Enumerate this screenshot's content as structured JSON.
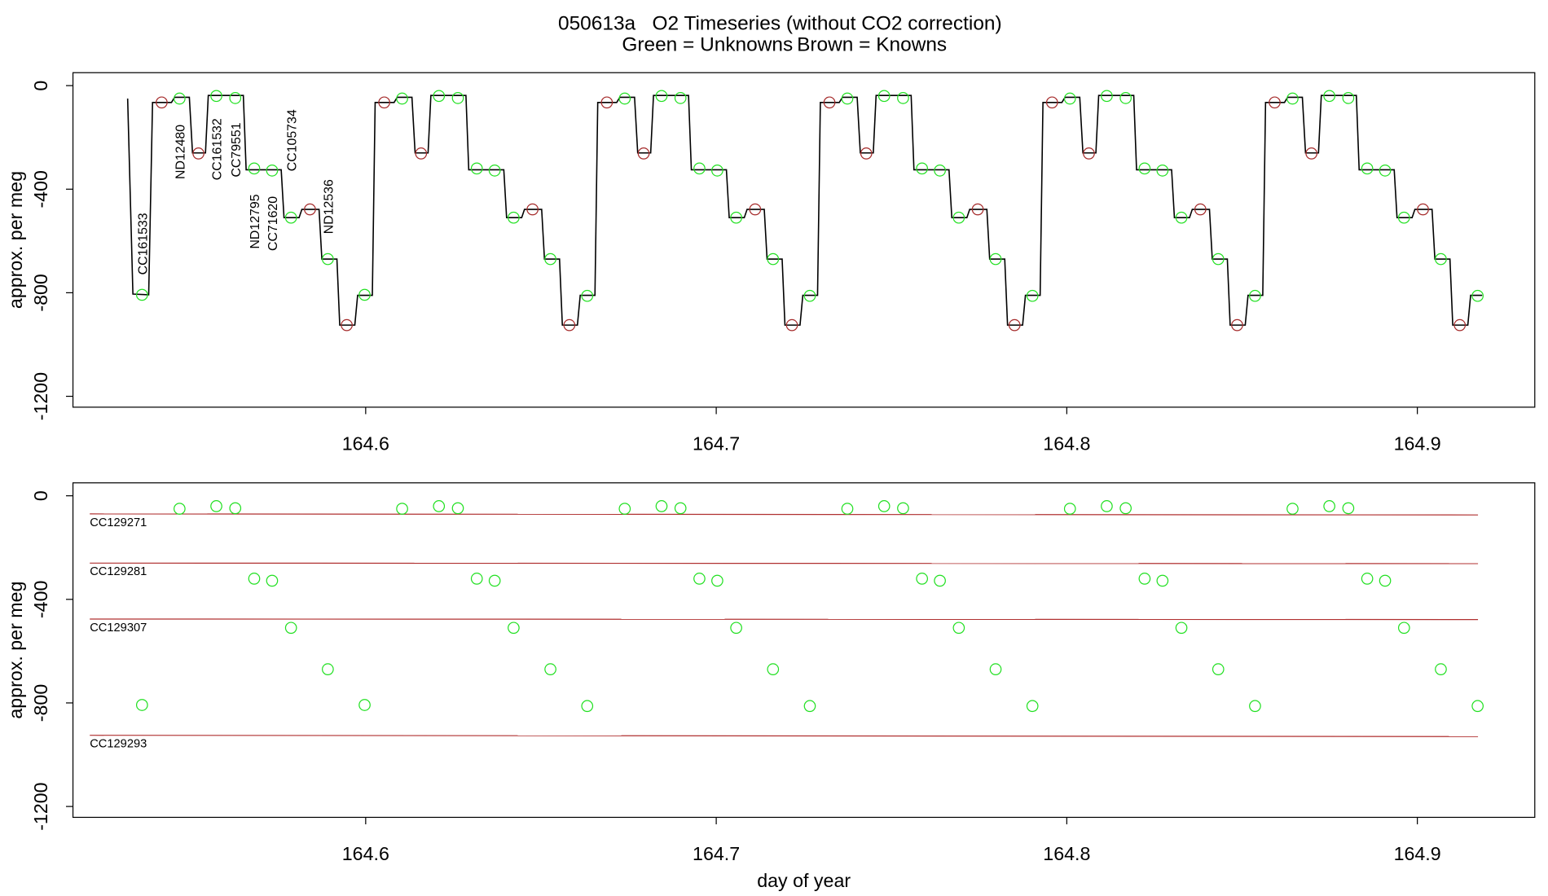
{
  "title": "050613a   O2 Timeseries (without CO2 correction)",
  "legend": [
    {
      "text": "Green = Unknowns",
      "color": "#22e022"
    },
    {
      "text": "Brown = Knowns",
      "color": "#a52a2a"
    }
  ],
  "chart_data": [
    {
      "type": "line",
      "y_label": "approx. per meg",
      "xlim": [
        164.5165,
        164.9335
      ],
      "ylim": [
        -1242,
        50
      ],
      "xticks": [
        164.6,
        164.7,
        164.8,
        164.9
      ],
      "yticks": [
        0,
        -400,
        -800,
        -1200
      ],
      "line": {
        "color": "#000000",
        "x": [
          164.5321,
          164.5336,
          164.5381,
          164.5392,
          164.5446,
          164.5455,
          164.5497,
          164.5506,
          164.5543,
          164.5551,
          164.5651,
          164.5659,
          164.5759,
          164.5767,
          164.581,
          164.5818,
          164.5867,
          164.5875,
          164.5918,
          164.5926,
          164.5969,
          164.5977,
          164.6019,
          164.6027,
          164.6081,
          164.609,
          164.6132,
          164.6141,
          164.6178,
          164.6186,
          164.6286,
          164.6294,
          164.6394,
          164.6402,
          164.6445,
          164.6453,
          164.6502,
          164.651,
          164.6553,
          164.6561,
          164.6604,
          164.6612,
          164.6654,
          164.6662,
          164.6716,
          164.6725,
          164.6767,
          164.6776,
          164.6813,
          164.6821,
          164.6921,
          164.6929,
          164.7029,
          164.7037,
          164.708,
          164.7088,
          164.7137,
          164.7145,
          164.7188,
          164.7196,
          164.7239,
          164.7247,
          164.7289,
          164.7297,
          164.7351,
          164.736,
          164.7402,
          164.7411,
          164.7448,
          164.7456,
          164.7556,
          164.7564,
          164.7664,
          164.7672,
          164.7715,
          164.7723,
          164.7772,
          164.778,
          164.7823,
          164.7831,
          164.7874,
          164.7882,
          164.7924,
          164.7932,
          164.7986,
          164.7995,
          164.8037,
          164.8046,
          164.8083,
          164.8091,
          164.8191,
          164.8199,
          164.8299,
          164.8307,
          164.835,
          164.8358,
          164.8407,
          164.8415,
          164.8458,
          164.8466,
          164.8509,
          164.8517,
          164.8559,
          164.8567,
          164.8621,
          164.863,
          164.8672,
          164.8681,
          164.8718,
          164.8726,
          164.8826,
          164.8834,
          164.8934,
          164.8942,
          164.8985,
          164.8993,
          164.9042,
          164.905,
          164.9093,
          164.9101,
          164.9144,
          164.9152,
          164.9185
        ],
        "values": [
          -50,
          -805,
          -808,
          -65,
          -65,
          -45,
          -45,
          -260,
          -260,
          -38,
          -38,
          -325,
          -325,
          -510,
          -510,
          -478,
          -478,
          -670,
          -670,
          -925,
          -925,
          -810,
          -810,
          -65,
          -65,
          -45,
          -45,
          -260,
          -260,
          -38,
          -38,
          -325,
          -325,
          -510,
          -510,
          -478,
          -478,
          -670,
          -670,
          -925,
          -925,
          -810,
          -810,
          -65,
          -65,
          -45,
          -45,
          -260,
          -260,
          -38,
          -38,
          -325,
          -325,
          -510,
          -510,
          -478,
          -478,
          -670,
          -670,
          -925,
          -925,
          -810,
          -810,
          -65,
          -65,
          -45,
          -45,
          -260,
          -260,
          -38,
          -38,
          -325,
          -325,
          -510,
          -510,
          -478,
          -478,
          -670,
          -670,
          -925,
          -925,
          -810,
          -810,
          -65,
          -65,
          -45,
          -45,
          -260,
          -260,
          -38,
          -38,
          -325,
          -325,
          -510,
          -510,
          -478,
          -478,
          -670,
          -670,
          -925,
          -925,
          -810,
          -810,
          -65,
          -65,
          -45,
          -45,
          -260,
          -260,
          -38,
          -38,
          -325,
          -325,
          -510,
          -510,
          -478,
          -478,
          -670,
          -670,
          -925,
          -925,
          -810,
          -810
        ]
      },
      "knowns": {
        "color": "#a52a2a",
        "x": [
          164.5418,
          164.5523,
          164.5841,
          164.5946,
          164.6053,
          164.6158,
          164.6476,
          164.6581,
          164.6688,
          164.6793,
          164.7111,
          164.7216,
          164.7323,
          164.7428,
          164.7746,
          164.7851,
          164.7958,
          164.8063,
          164.8381,
          164.8486,
          164.8593,
          164.8698,
          164.9016,
          164.9121
        ],
        "values": [
          -65,
          -262,
          -478,
          -925,
          -65,
          -262,
          -478,
          -925,
          -65,
          -262,
          -478,
          -925,
          -65,
          -262,
          -478,
          -925,
          -65,
          -262,
          -478,
          -925,
          -65,
          -262,
          -478,
          -925
        ]
      },
      "unknowns": {
        "color": "#22e022",
        "labels": [
          "CC161533",
          "ND12480",
          "CC161532",
          "CC79551",
          "ND12795",
          "CC71620",
          "CC105734",
          "ND12536"
        ],
        "x": [
          164.5362,
          164.5469,
          164.5574,
          164.5628,
          164.5682,
          164.5733,
          164.5787,
          164.5892,
          164.5997,
          164.6104,
          164.6209,
          164.6263,
          164.6317,
          164.6368,
          164.6422,
          164.6527,
          164.6632,
          164.6739,
          164.6844,
          164.6898,
          164.6952,
          164.7003,
          164.7057,
          164.7162,
          164.7267,
          164.7374,
          164.7479,
          164.7533,
          164.7587,
          164.7638,
          164.7692,
          164.7797,
          164.7902,
          164.8009,
          164.8114,
          164.8168,
          164.8222,
          164.8273,
          164.8327,
          164.8432,
          164.8537,
          164.8644,
          164.8749,
          164.8803,
          164.8857,
          164.8908,
          164.8962,
          164.9067,
          164.9172
        ],
        "values": [
          -808,
          -50,
          -40,
          -48,
          -320,
          -328,
          -510,
          -670,
          -808,
          -50,
          -40,
          -48,
          -320,
          -328,
          -510,
          -670,
          -812,
          -50,
          -40,
          -48,
          -320,
          -328,
          -510,
          -670,
          -812,
          -50,
          -40,
          -48,
          -320,
          -328,
          -510,
          -670,
          -812,
          -50,
          -40,
          -48,
          -320,
          -328,
          -510,
          -670,
          -812,
          -50,
          -40,
          -48,
          -320,
          -328,
          -510,
          -670,
          -812
        ]
      }
    },
    {
      "type": "scatter",
      "y_label": "approx. per meg",
      "x_label": "day of year",
      "xlim": [
        164.5165,
        164.9335
      ],
      "ylim": [
        -1242,
        50
      ],
      "xticks": [
        164.6,
        164.7,
        164.8,
        164.9
      ],
      "yticks": [
        0,
        -400,
        -800,
        -1200
      ],
      "unknowns": {
        "color": "#22e022",
        "x": [
          164.5362,
          164.5469,
          164.5574,
          164.5628,
          164.5682,
          164.5733,
          164.5787,
          164.5892,
          164.5997,
          164.6104,
          164.6209,
          164.6263,
          164.6317,
          164.6368,
          164.6422,
          164.6527,
          164.6632,
          164.6739,
          164.6844,
          164.6898,
          164.6952,
          164.7003,
          164.7057,
          164.7162,
          164.7267,
          164.7374,
          164.7479,
          164.7533,
          164.7587,
          164.7638,
          164.7692,
          164.7797,
          164.7902,
          164.8009,
          164.8114,
          164.8168,
          164.8222,
          164.8273,
          164.8327,
          164.8432,
          164.8537,
          164.8644,
          164.8749,
          164.8803,
          164.8857,
          164.8908,
          164.8962,
          164.9067,
          164.9172
        ],
        "values": [
          -808,
          -50,
          -40,
          -48,
          -320,
          -328,
          -510,
          -670,
          -808,
          -50,
          -40,
          -48,
          -320,
          -328,
          -510,
          -670,
          -812,
          -50,
          -40,
          -48,
          -320,
          -328,
          -510,
          -670,
          -812,
          -50,
          -40,
          -48,
          -320,
          -328,
          -510,
          -670,
          -812,
          -50,
          -40,
          -48,
          -320,
          -328,
          -510,
          -670,
          -812,
          -50,
          -40,
          -48,
          -320,
          -328,
          -510,
          -670,
          -812
        ]
      },
      "reference_lines": {
        "color": "#b03030",
        "x": [
          164.5213,
          164.9173
        ],
        "lines": [
          {
            "label": "CC129271",
            "values": [
              -70,
              -74
            ]
          },
          {
            "label": "CC129281",
            "values": [
              -260,
              -262
            ]
          },
          {
            "label": "CC129307",
            "values": [
              -476,
              -478
            ]
          },
          {
            "label": "CC129293",
            "values": [
              -925,
              -930
            ]
          }
        ]
      }
    }
  ]
}
